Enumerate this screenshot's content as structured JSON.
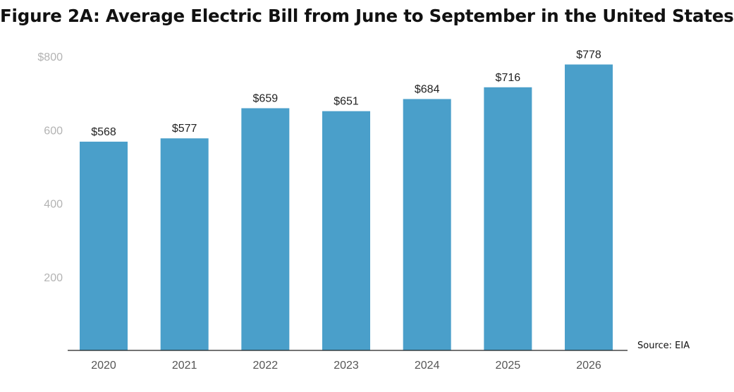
{
  "chart_data": {
    "type": "bar",
    "title": "Figure 2A: Average Electric Bill from June to September in the United States",
    "categories": [
      "2020",
      "2021",
      "2022",
      "2023",
      "2024",
      "2025",
      "2026"
    ],
    "values": [
      568,
      577,
      659,
      651,
      684,
      716,
      778
    ],
    "value_labels": [
      "$568",
      "$577",
      "$659",
      "$651",
      "$684",
      "$716",
      "$778"
    ],
    "ylim": [
      0,
      800
    ],
    "yticks": [
      200,
      400,
      600,
      800
    ],
    "ytick_labels": [
      "200",
      "400",
      "600",
      "$800"
    ],
    "xlabel": "",
    "ylabel": "",
    "grid": false,
    "legend": "none",
    "bar_color": "#4a9fca",
    "source": "Source: EIA"
  }
}
